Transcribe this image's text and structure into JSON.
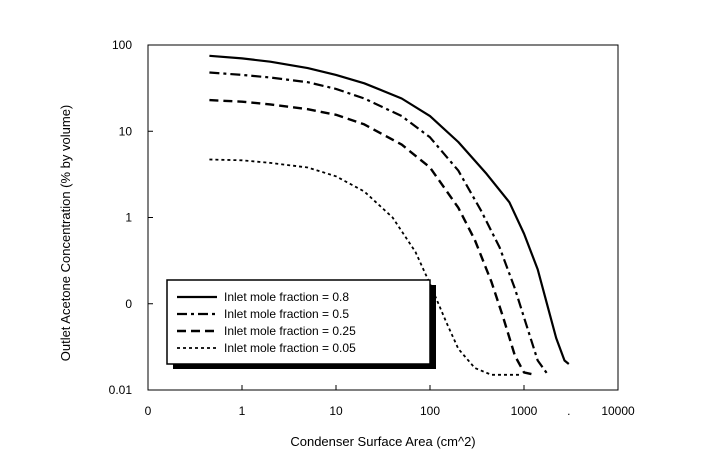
{
  "chart_data": {
    "type": "line",
    "title": "",
    "xlabel": "Condenser Surface Area (cm^2)",
    "ylabel": "Outlet Acetone Concentration (% by volume)",
    "xscale": "log",
    "yscale": "log",
    "xlim": [
      0.1,
      10000
    ],
    "ylim": [
      0.01,
      100
    ],
    "grid": false,
    "legend_position": "bottom-left",
    "x_ticks": [
      {
        "value": 0.1,
        "label": "0"
      },
      {
        "value": 1,
        "label": "1"
      },
      {
        "value": 10,
        "label": "10"
      },
      {
        "value": 100,
        "label": "100"
      },
      {
        "value": 1000,
        "label": "1000"
      },
      {
        "value": 10000,
        "label": "10000"
      }
    ],
    "y_ticks": [
      {
        "value": 0.01,
        "label": "0.01"
      },
      {
        "value": 0.1,
        "label": "0"
      },
      {
        "value": 1,
        "label": "1"
      },
      {
        "value": 10,
        "label": "10"
      },
      {
        "value": 100,
        "label": "100"
      }
    ],
    "extra_x_tick_label": {
      "value": 3000,
      "label": "."
    },
    "series": [
      {
        "name": "Inlet mole fraction = 0.8",
        "dash": "solid",
        "x": [
          0.45,
          1,
          2,
          5,
          10,
          20,
          50,
          100,
          200,
          400,
          700,
          1000,
          1400,
          1800,
          2200,
          2700,
          3000
        ],
        "y": [
          75,
          70,
          64,
          54,
          45,
          36,
          24,
          15,
          7.5,
          3.2,
          1.5,
          0.65,
          0.25,
          0.09,
          0.04,
          0.022,
          0.02
        ]
      },
      {
        "name": "Inlet mole fraction = 0.5",
        "dash": "dashdot",
        "x": [
          0.45,
          1,
          2,
          5,
          10,
          20,
          50,
          100,
          200,
          350,
          550,
          800,
          1100,
          1400,
          1800
        ],
        "y": [
          48,
          45,
          42,
          37,
          31,
          24,
          15,
          8.5,
          3.5,
          1.2,
          0.45,
          0.15,
          0.05,
          0.022,
          0.015
        ]
      },
      {
        "name": "Inlet mole fraction = 0.25",
        "dash": "dash",
        "x": [
          0.45,
          1,
          2,
          5,
          10,
          20,
          50,
          100,
          200,
          300,
          450,
          600,
          800,
          1000,
          1300
        ],
        "y": [
          23,
          22,
          20.5,
          18,
          15.5,
          12,
          7,
          3.8,
          1.3,
          0.55,
          0.18,
          0.07,
          0.025,
          0.016,
          0.015
        ]
      },
      {
        "name": "Inlet mole fraction = 0.05",
        "dash": "dot",
        "x": [
          0.45,
          1,
          2,
          5,
          10,
          20,
          40,
          70,
          100,
          150,
          200,
          300,
          450,
          650,
          900
        ],
        "y": [
          4.7,
          4.6,
          4.3,
          3.8,
          3.0,
          2.0,
          1.0,
          0.4,
          0.17,
          0.06,
          0.03,
          0.018,
          0.015,
          0.015,
          0.015
        ]
      }
    ]
  }
}
